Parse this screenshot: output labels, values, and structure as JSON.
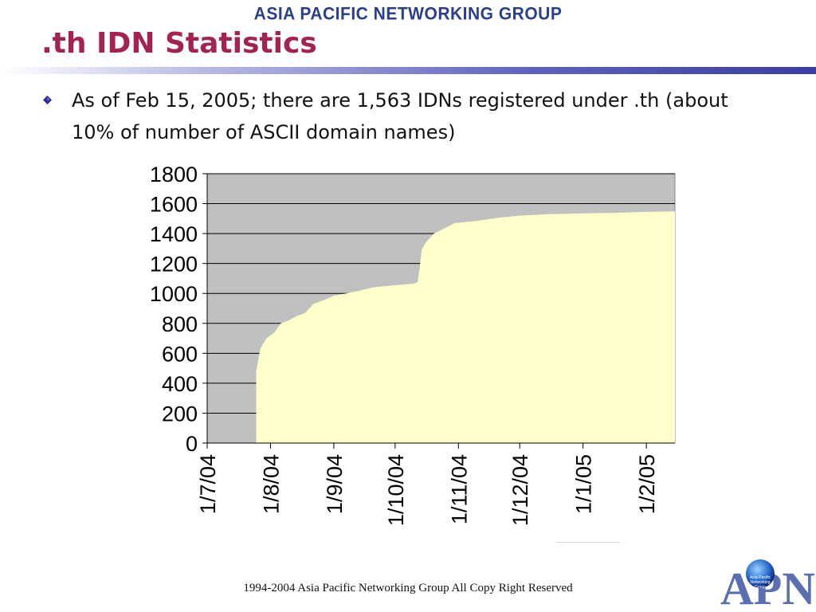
{
  "header": {
    "banner": "ASIA PACIFIC NETWORKING GROUP"
  },
  "slide": {
    "title": ".th IDN Statistics",
    "bullet": "As of Feb 15, 2005; there are 1,563 IDNs registered under .th (about 10% of number of ASCII domain names)"
  },
  "chart_data": {
    "type": "area",
    "title": "",
    "xlabel": "",
    "ylabel": "",
    "ylim": [
      0,
      1800
    ],
    "yticks": [
      0,
      200,
      400,
      600,
      800,
      1000,
      1200,
      1400,
      1600,
      1800
    ],
    "xlim": [
      "2004-07-01",
      "2005-02-15"
    ],
    "xticks": [
      {
        "date": "2004-07-01",
        "label": "1/7/04"
      },
      {
        "date": "2004-08-01",
        "label": "1/8/04"
      },
      {
        "date": "2004-09-01",
        "label": "1/9/04"
      },
      {
        "date": "2004-10-01",
        "label": "1/10/04"
      },
      {
        "date": "2004-11-01",
        "label": "1/11/04"
      },
      {
        "date": "2004-12-01",
        "label": "1/12/04"
      },
      {
        "date": "2005-01-01",
        "label": "1/1/05"
      },
      {
        "date": "2005-02-01",
        "label": "1/2/05"
      }
    ],
    "grid": true,
    "series": [
      {
        "name": "",
        "points": [
          [
            "2004-07-25",
            0
          ],
          [
            "2004-07-25",
            480
          ],
          [
            "2004-07-27",
            630
          ],
          [
            "2004-07-30",
            700
          ],
          [
            "2004-08-03",
            740
          ],
          [
            "2004-08-06",
            800
          ],
          [
            "2004-08-10",
            820
          ],
          [
            "2004-08-14",
            850
          ],
          [
            "2004-08-18",
            870
          ],
          [
            "2004-08-22",
            930
          ],
          [
            "2004-08-28",
            960
          ],
          [
            "2004-09-01",
            985
          ],
          [
            "2004-09-07",
            1000
          ],
          [
            "2004-09-14",
            1020
          ],
          [
            "2004-09-20",
            1040
          ],
          [
            "2004-10-01",
            1055
          ],
          [
            "2004-10-10",
            1065
          ],
          [
            "2004-10-12",
            1075
          ],
          [
            "2004-10-13",
            1170
          ],
          [
            "2004-10-14",
            1290
          ],
          [
            "2004-10-16",
            1340
          ],
          [
            "2004-10-20",
            1400
          ],
          [
            "2004-10-26",
            1440
          ],
          [
            "2004-10-30",
            1470
          ],
          [
            "2004-11-10",
            1485
          ],
          [
            "2004-11-20",
            1505
          ],
          [
            "2004-12-01",
            1520
          ],
          [
            "2004-12-15",
            1530
          ],
          [
            "2005-01-01",
            1535
          ],
          [
            "2005-01-15",
            1538
          ],
          [
            "2005-02-01",
            1545
          ],
          [
            "2005-02-15",
            1548
          ]
        ]
      }
    ],
    "colors": {
      "plot_background": "#c0c0c0",
      "area_fill": "#ffffcc",
      "grid": "#000000"
    }
  },
  "footer": {
    "copyright": "1994-2004 Asia Pacific Networking Group All Copy Right Reserved"
  },
  "logo": {
    "text": "APNG",
    "subtext": [
      "Asia-Pacific",
      "Networking",
      "Group"
    ]
  }
}
